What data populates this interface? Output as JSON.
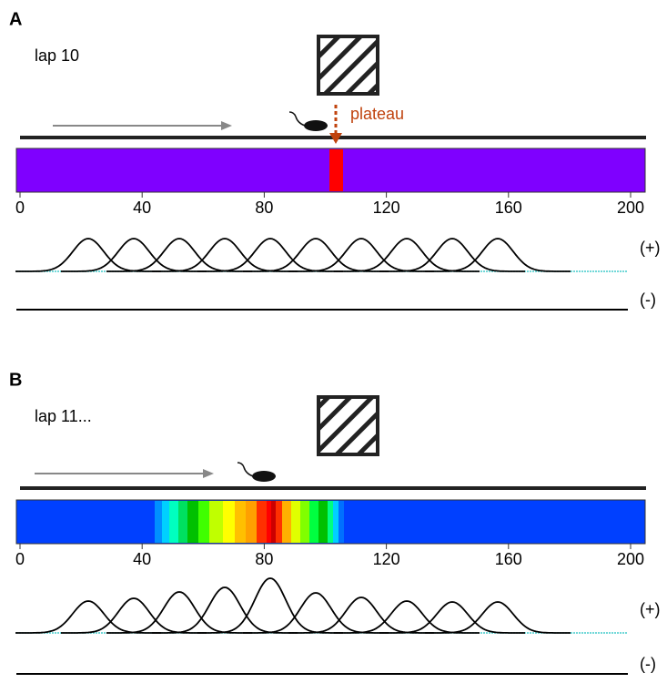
{
  "panels": [
    {
      "label": "A",
      "lap": "lap 10",
      "annotation": "plateau",
      "ticks": [
        "0",
        "40",
        "80",
        "120",
        "160",
        "200"
      ],
      "plus": "(+)",
      "minus": "(-)"
    },
    {
      "label": "B",
      "lap": "lap 11...",
      "ticks": [
        "0",
        "40",
        "80",
        "120",
        "160",
        "200"
      ],
      "plus": "(+)",
      "minus": "(-)"
    }
  ]
}
